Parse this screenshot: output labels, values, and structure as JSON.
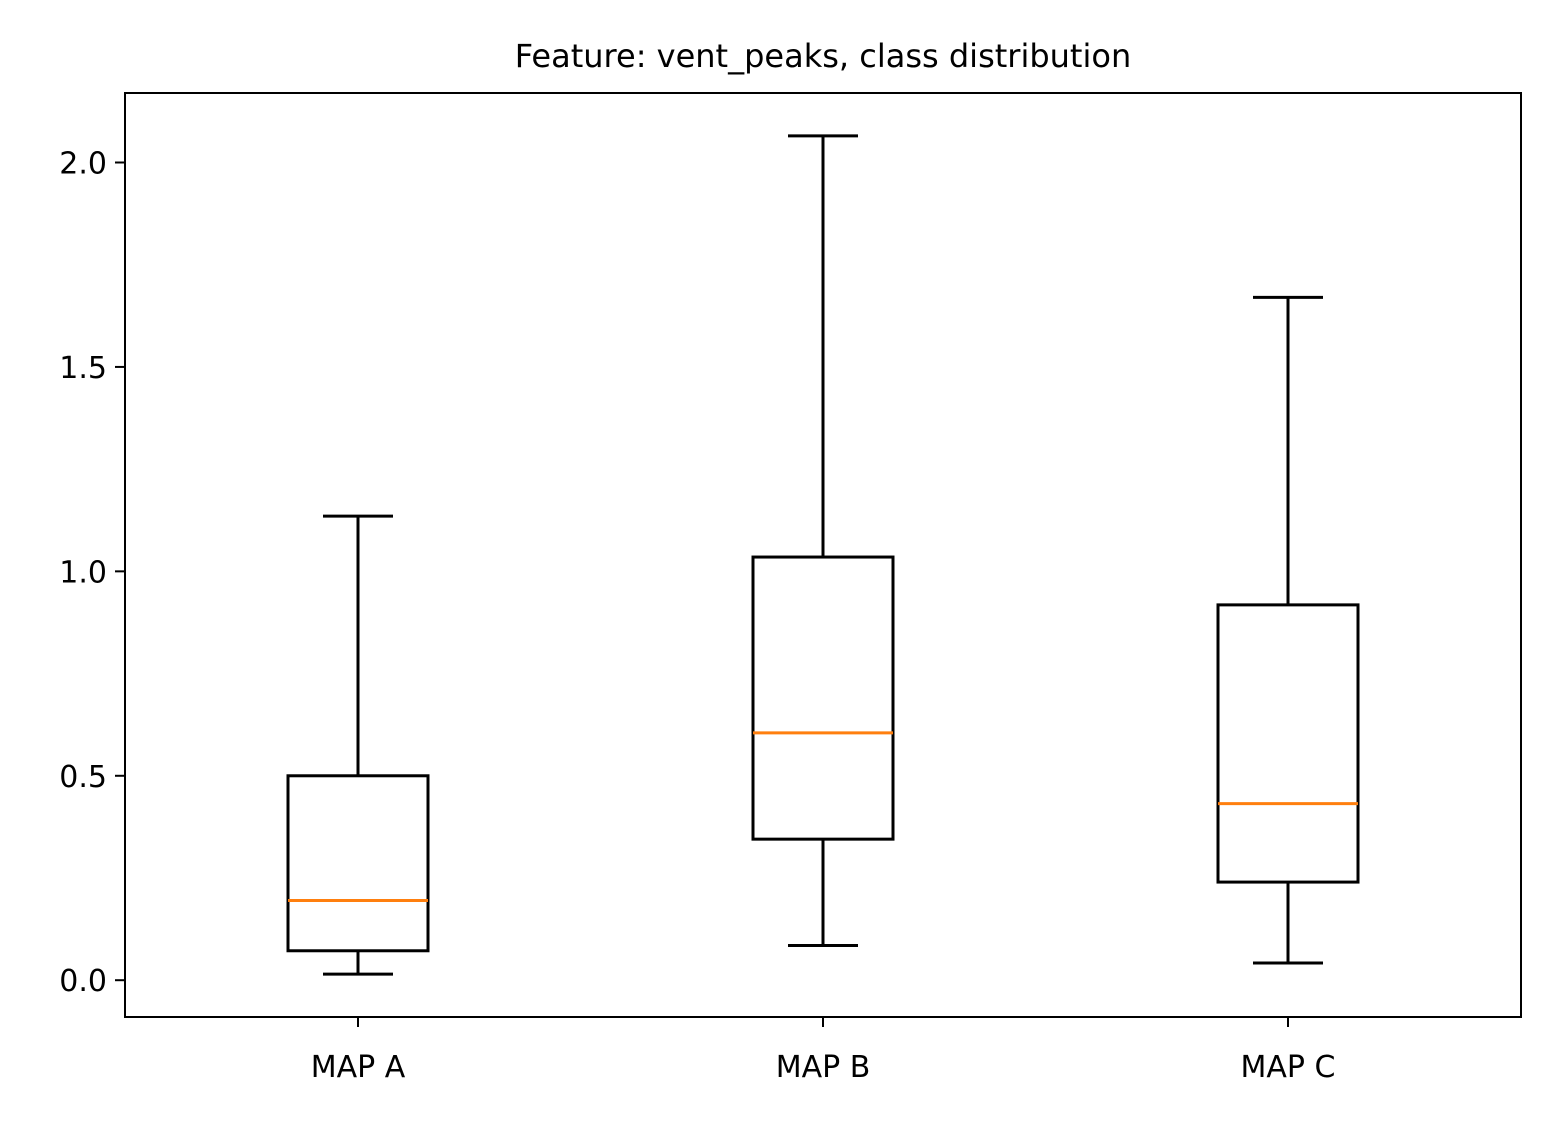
{
  "chart_data": {
    "type": "box",
    "title": "Feature: vent_peaks, class distribution",
    "xlabel": "",
    "ylabel": "",
    "ylim": [
      -0.09,
      2.17
    ],
    "yticks": [
      0.0,
      0.5,
      1.0,
      1.5,
      2.0
    ],
    "ytick_labels": [
      "0.0",
      "0.5",
      "1.0",
      "1.5",
      "2.0"
    ],
    "grid": false,
    "categories": [
      "MAP A",
      "MAP B",
      "MAP C"
    ],
    "boxes": [
      {
        "label": "MAP A",
        "whisker_low": 0.015,
        "q1": 0.072,
        "median": 0.195,
        "q3": 0.5,
        "whisker_high": 1.135
      },
      {
        "label": "MAP B",
        "whisker_low": 0.085,
        "q1": 0.345,
        "median": 0.605,
        "q3": 1.035,
        "whisker_high": 2.065
      },
      {
        "label": "MAP C",
        "whisker_low": 0.042,
        "q1": 0.24,
        "median": 0.432,
        "q3": 0.918,
        "whisker_high": 1.67
      }
    ],
    "colors": {
      "box": "#000000",
      "whisker": "#000000",
      "median": "#ff7f0e"
    }
  }
}
